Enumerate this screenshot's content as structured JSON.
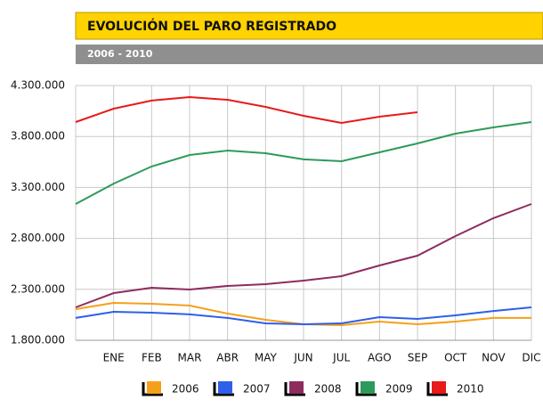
{
  "chart_data": {
    "type": "line",
    "title": "EVOLUCIÓN DEL PARO REGISTRADO",
    "subtitle": "2006 - 2010",
    "categories": [
      null,
      "ENE",
      "FEB",
      "MAR",
      "ABR",
      "MAY",
      "JUN",
      "JUL",
      "AGO",
      "SEP",
      "OCT",
      "NOV",
      "DIC"
    ],
    "series": [
      {
        "name": "2006",
        "color": "#f5a01a",
        "values": [
          2106000,
          2167000,
          2158000,
          2141000,
          2062000,
          2001000,
          1957000,
          1949000,
          1984000,
          1957000,
          1984000,
          2019000,
          2019000
        ]
      },
      {
        "name": "2007",
        "color": "#2f5fe8",
        "values": [
          2019000,
          2080000,
          2071000,
          2054000,
          2019000,
          1966000,
          1957000,
          1966000,
          2027000,
          2010000,
          2045000,
          2088000,
          2123000
        ]
      },
      {
        "name": "2008",
        "color": "#8e2c5e",
        "values": [
          2123000,
          2263000,
          2316000,
          2298000,
          2333000,
          2351000,
          2386000,
          2429000,
          2534000,
          2630000,
          2823000,
          2998000,
          3137000
        ]
      },
      {
        "name": "2009",
        "color": "#2e9a5a",
        "values": [
          3137000,
          3338000,
          3505000,
          3618000,
          3662000,
          3636000,
          3575000,
          3557000,
          3644000,
          3732000,
          3828000,
          3889000,
          3942000
        ]
      },
      {
        "name": "2010",
        "color": "#e81a1a",
        "values": [
          3942000,
          4073000,
          4152000,
          4186000,
          4160000,
          4090000,
          4003000,
          3933000,
          3994000,
          4038000,
          null,
          null,
          null
        ]
      }
    ],
    "ylim": [
      1800000,
      4300000
    ],
    "yticks": [
      {
        "value": 1800000,
        "label": "1.800.000"
      },
      {
        "value": 2300000,
        "label": "2.300.000"
      },
      {
        "value": 2800000,
        "label": "2.800.000"
      },
      {
        "value": 3300000,
        "label": "3.300.000"
      },
      {
        "value": 3800000,
        "label": "3.800.000"
      },
      {
        "value": 4300000,
        "label": "4.300.000"
      }
    ],
    "grid": true
  }
}
